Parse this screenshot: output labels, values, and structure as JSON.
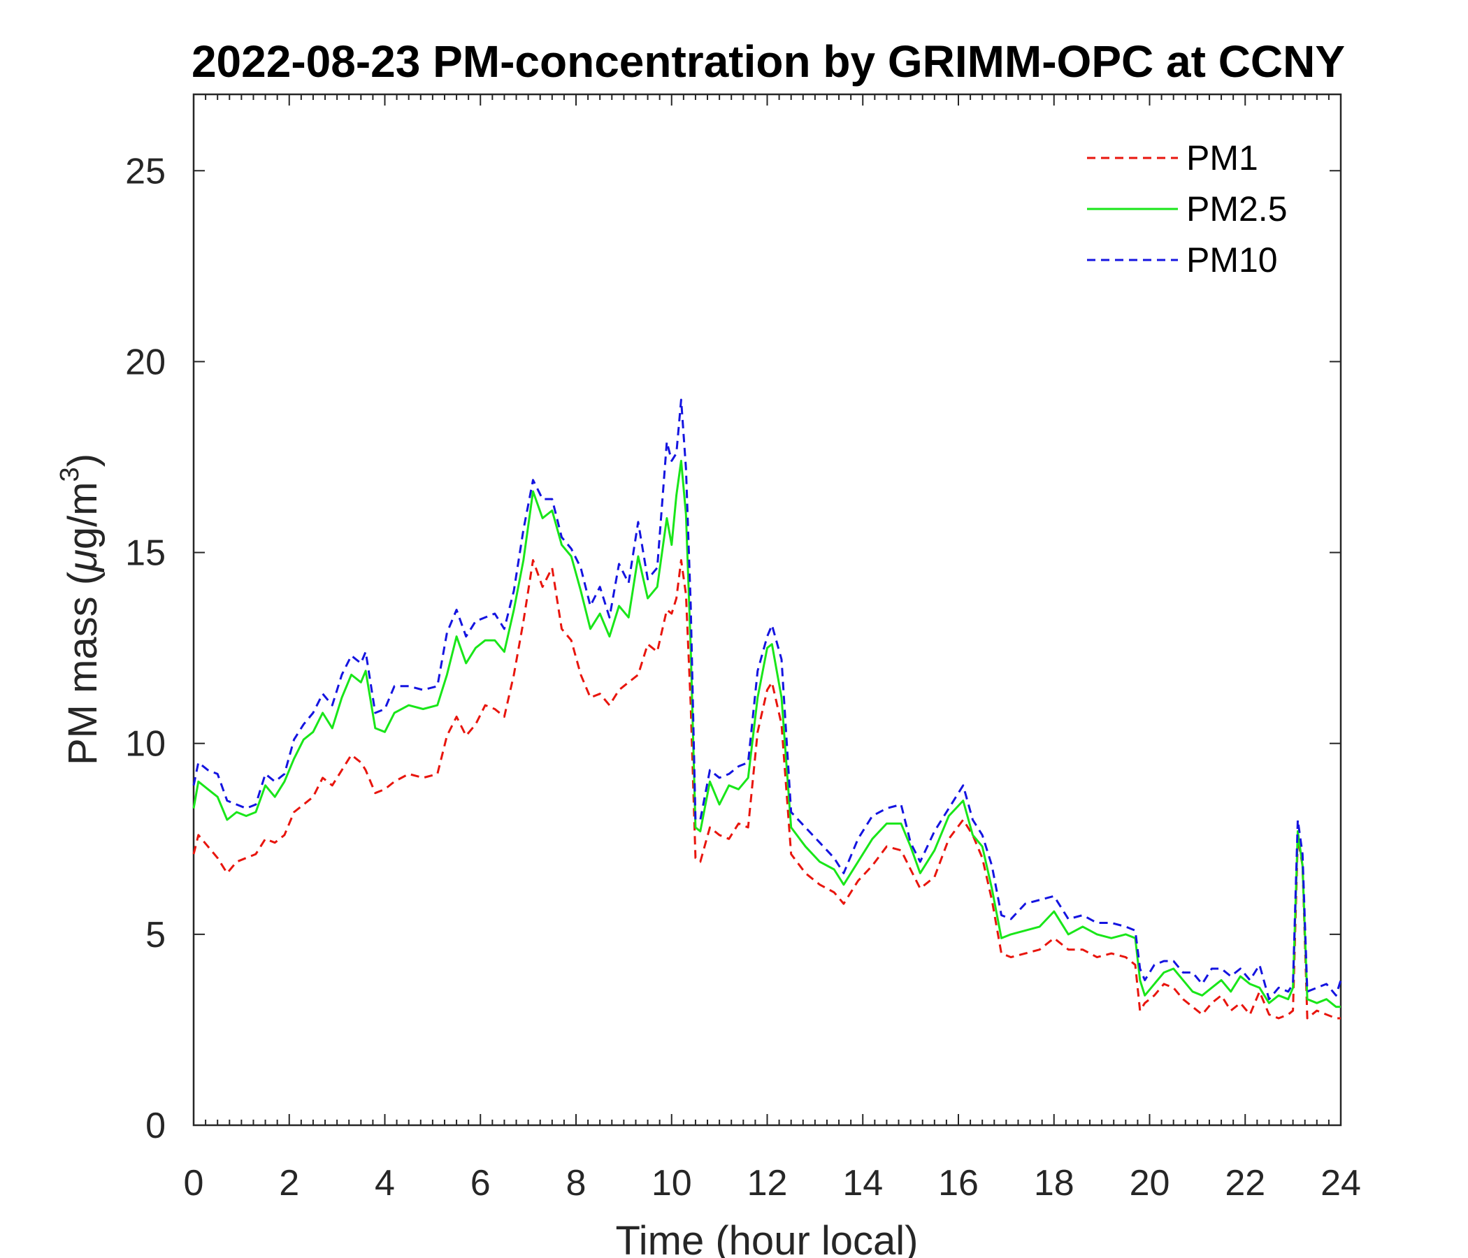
{
  "chart_data": {
    "type": "line",
    "title": "2022-08-23 PM-concentration by GRIMM-OPC at CCNY",
    "xlabel": "Time (hour local)",
    "ylabel_main": "PM mass (",
    "ylabel_mu": "μ",
    "ylabel_unit": "g/m",
    "ylabel_sup": "3",
    "ylabel_close": ")",
    "xlim": [
      0,
      24
    ],
    "ylim": [
      0,
      27
    ],
    "xticks": [
      0,
      2,
      4,
      6,
      8,
      10,
      12,
      14,
      16,
      18,
      20,
      22,
      24
    ],
    "yticks": [
      0,
      5,
      10,
      15,
      20,
      25
    ],
    "grid": false,
    "legend_position": "top-right",
    "x": [
      0,
      0.1,
      0.3,
      0.5,
      0.7,
      0.9,
      1.1,
      1.3,
      1.5,
      1.7,
      1.9,
      2.1,
      2.3,
      2.5,
      2.7,
      2.9,
      3.1,
      3.3,
      3.5,
      3.6,
      3.8,
      4.0,
      4.2,
      4.5,
      4.8,
      5.1,
      5.3,
      5.5,
      5.7,
      5.9,
      6.1,
      6.3,
      6.5,
      6.7,
      6.9,
      7.1,
      7.3,
      7.5,
      7.7,
      7.9,
      8.1,
      8.3,
      8.5,
      8.7,
      8.9,
      9.1,
      9.3,
      9.5,
      9.7,
      9.9,
      10.0,
      10.1,
      10.2,
      10.3,
      10.4,
      10.5,
      10.6,
      10.8,
      11.0,
      11.2,
      11.4,
      11.6,
      11.8,
      12.0,
      12.1,
      12.3,
      12.5,
      12.8,
      13.1,
      13.4,
      13.6,
      13.9,
      14.2,
      14.5,
      14.8,
      15.0,
      15.2,
      15.5,
      15.8,
      16.1,
      16.3,
      16.5,
      16.7,
      16.9,
      17.1,
      17.4,
      17.7,
      18.0,
      18.3,
      18.6,
      18.9,
      19.2,
      19.5,
      19.7,
      19.8,
      19.9,
      20.1,
      20.3,
      20.5,
      20.7,
      20.9,
      21.1,
      21.3,
      21.5,
      21.7,
      21.9,
      22.1,
      22.3,
      22.5,
      22.7,
      22.9,
      23.0,
      23.1,
      23.2,
      23.3,
      23.5,
      23.7,
      23.9,
      24.0
    ],
    "series": [
      {
        "name": "PM1",
        "color": "#e8150d",
        "dash": "dashed",
        "values": [
          7.1,
          7.6,
          7.3,
          7.0,
          6.6,
          6.9,
          7.0,
          7.1,
          7.5,
          7.4,
          7.6,
          8.2,
          8.4,
          8.6,
          9.1,
          8.9,
          9.3,
          9.7,
          9.5,
          9.3,
          8.7,
          8.8,
          9.0,
          9.2,
          9.1,
          9.2,
          10.2,
          10.7,
          10.2,
          10.5,
          11.0,
          10.9,
          10.7,
          11.8,
          13.2,
          14.8,
          14.1,
          14.6,
          13.0,
          12.7,
          11.8,
          11.2,
          11.3,
          11.0,
          11.4,
          11.6,
          11.8,
          12.6,
          12.4,
          13.5,
          13.4,
          13.8,
          14.8,
          13.9,
          11.0,
          7.0,
          6.9,
          7.8,
          7.6,
          7.5,
          7.9,
          7.8,
          10.3,
          11.4,
          11.6,
          10.5,
          7.1,
          6.6,
          6.3,
          6.1,
          5.8,
          6.4,
          6.8,
          7.3,
          7.2,
          6.7,
          6.2,
          6.5,
          7.5,
          8.0,
          7.6,
          7.0,
          5.9,
          4.5,
          4.4,
          4.5,
          4.6,
          4.9,
          4.6,
          4.6,
          4.4,
          4.5,
          4.4,
          4.2,
          3.0,
          3.2,
          3.4,
          3.7,
          3.6,
          3.3,
          3.1,
          2.9,
          3.2,
          3.4,
          3.0,
          3.2,
          2.9,
          3.5,
          2.9,
          2.8,
          2.9,
          3.0,
          7.5,
          6.8,
          2.8,
          3.0,
          2.9,
          2.8,
          2.8
        ]
      },
      {
        "name": "PM2.5",
        "color": "#19e619",
        "dash": "solid",
        "values": [
          8.3,
          9.0,
          8.8,
          8.6,
          8.0,
          8.2,
          8.1,
          8.2,
          8.9,
          8.6,
          9.0,
          9.6,
          10.1,
          10.3,
          10.8,
          10.4,
          11.2,
          11.8,
          11.6,
          11.9,
          10.4,
          10.3,
          10.8,
          11.0,
          10.9,
          11.0,
          11.8,
          12.8,
          12.1,
          12.5,
          12.7,
          12.7,
          12.4,
          13.5,
          14.8,
          16.6,
          15.9,
          16.1,
          15.2,
          14.9,
          14.0,
          13.0,
          13.4,
          12.8,
          13.6,
          13.3,
          14.9,
          13.8,
          14.1,
          15.9,
          15.2,
          16.5,
          17.4,
          16.0,
          12.5,
          7.8,
          7.7,
          9.0,
          8.4,
          8.9,
          8.8,
          9.1,
          11.2,
          12.5,
          12.6,
          11.2,
          7.8,
          7.3,
          6.9,
          6.7,
          6.3,
          6.9,
          7.5,
          7.9,
          7.9,
          7.3,
          6.6,
          7.2,
          8.1,
          8.5,
          7.6,
          7.3,
          6.2,
          4.9,
          5.0,
          5.1,
          5.2,
          5.6,
          5.0,
          5.2,
          5.0,
          4.9,
          5.0,
          4.9,
          3.8,
          3.4,
          3.7,
          4.0,
          4.1,
          3.8,
          3.5,
          3.4,
          3.6,
          3.8,
          3.5,
          3.9,
          3.7,
          3.6,
          3.2,
          3.4,
          3.3,
          3.6,
          7.7,
          6.8,
          3.3,
          3.2,
          3.3,
          3.1,
          3.1
        ]
      },
      {
        "name": "PM10",
        "color": "#1414e0",
        "dash": "dashed",
        "values": [
          8.9,
          9.5,
          9.3,
          9.2,
          8.5,
          8.4,
          8.3,
          8.4,
          9.2,
          9.0,
          9.2,
          10.1,
          10.5,
          10.8,
          11.3,
          11.0,
          11.8,
          12.3,
          12.1,
          12.4,
          10.8,
          10.9,
          11.5,
          11.5,
          11.4,
          11.5,
          12.9,
          13.5,
          12.8,
          13.2,
          13.3,
          13.4,
          13.0,
          14.0,
          15.6,
          16.9,
          16.4,
          16.4,
          15.4,
          15.1,
          14.6,
          13.6,
          14.1,
          13.3,
          14.7,
          14.2,
          15.8,
          14.3,
          14.6,
          17.9,
          17.4,
          17.6,
          19.0,
          17.2,
          13.6,
          8.0,
          8.0,
          9.3,
          9.1,
          9.2,
          9.4,
          9.5,
          11.9,
          12.8,
          13.1,
          12.2,
          8.2,
          7.8,
          7.4,
          7.0,
          6.6,
          7.5,
          8.1,
          8.3,
          8.4,
          7.4,
          6.9,
          7.7,
          8.3,
          8.9,
          8.0,
          7.6,
          6.8,
          5.5,
          5.4,
          5.8,
          5.9,
          6.0,
          5.4,
          5.5,
          5.3,
          5.3,
          5.2,
          5.1,
          4.1,
          3.8,
          4.2,
          4.3,
          4.3,
          4.0,
          4.0,
          3.7,
          4.1,
          4.1,
          3.9,
          4.1,
          3.8,
          4.2,
          3.3,
          3.6,
          3.5,
          3.7,
          8.0,
          7.1,
          3.5,
          3.6,
          3.7,
          3.4,
          3.8
        ]
      }
    ]
  }
}
